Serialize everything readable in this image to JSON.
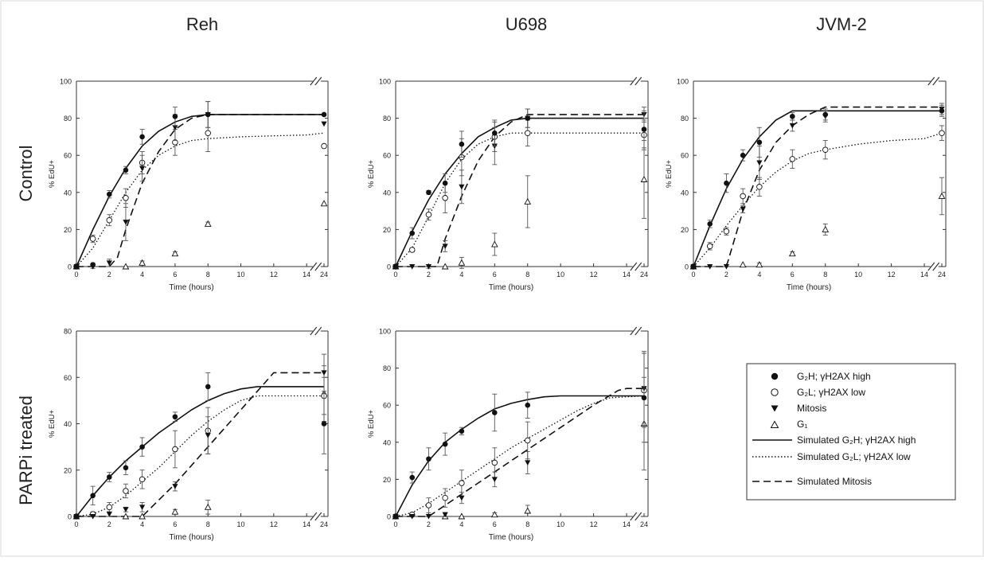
{
  "column_titles": [
    "Reh",
    "U698",
    "JVM-2"
  ],
  "row_titles": [
    "Control",
    "PARPi treated"
  ],
  "common": {
    "xlabel": "Time (hours)",
    "ylabel": "% EdU+",
    "x_ticks": [
      "0",
      "2",
      "4",
      "6",
      "8",
      "10",
      "12",
      "14",
      "24"
    ]
  },
  "legend": {
    "entries": [
      {
        "key": "g2h_points",
        "label": "G₂H; γH2AX high"
      },
      {
        "key": "g2l_points",
        "label": "G₂L; γH2AX low"
      },
      {
        "key": "mitosis_points",
        "label": "Mitosis"
      },
      {
        "key": "g1_points",
        "label": "G₁"
      },
      {
        "key": "g2h_sim",
        "label": "Simulated G₂H; γH2AX high"
      },
      {
        "key": "g2l_sim",
        "label": "Simulated G₂L; γH2AX low"
      },
      {
        "key": "mitosis_sim",
        "label": "Simulated Mitosis"
      }
    ]
  },
  "chart_data": [
    {
      "type": "scatter",
      "cell_line": "Reh",
      "condition": "Control",
      "xlabel": "Time (hours)",
      "ylabel": "% EdU+",
      "ylim": [
        0,
        100
      ],
      "y_ticks": [
        0,
        20,
        40,
        60,
        80,
        100
      ],
      "x_axis_break": [
        14,
        24
      ],
      "series": [
        {
          "name": "G₂H; γH2AX high",
          "x": [
            0,
            1,
            2,
            3,
            4,
            6,
            8,
            24
          ],
          "y": [
            0,
            1,
            39,
            52,
            70,
            81,
            82,
            82
          ],
          "err": [
            0,
            1,
            2,
            2,
            4,
            5,
            7,
            0
          ]
        },
        {
          "name": "G₂L; γH2AX low",
          "x": [
            0,
            1,
            2,
            3,
            4,
            6,
            8,
            24
          ],
          "y": [
            0,
            15,
            25,
            37,
            56,
            67,
            72,
            65
          ],
          "err": [
            0,
            2,
            3,
            5,
            6,
            7,
            10,
            0
          ]
        },
        {
          "name": "Mitosis",
          "x": [
            0,
            1,
            2,
            3,
            4,
            6,
            8,
            24
          ],
          "y": [
            0,
            0,
            2,
            24,
            53,
            75,
            82,
            77
          ],
          "err": [
            0,
            1,
            2,
            10,
            7,
            7,
            7,
            0
          ]
        },
        {
          "name": "G₁",
          "x": [
            0,
            3,
            4,
            6,
            8,
            24
          ],
          "y": [
            0,
            0,
            2,
            7,
            23,
            34
          ],
          "err": [
            0,
            0,
            1,
            1,
            1,
            0
          ]
        },
        {
          "name": "Simulated G₂H; γH2AX high",
          "x": [
            0,
            1,
            2,
            3,
            4,
            5,
            6,
            7,
            8,
            24
          ],
          "y": [
            0,
            20,
            38,
            53,
            65,
            73,
            78,
            81,
            82,
            82
          ]
        },
        {
          "name": "Simulated G₂L; γH2AX low",
          "x": [
            0,
            1,
            2,
            3,
            4,
            5,
            6,
            7,
            8,
            10,
            12,
            14,
            24
          ],
          "y": [
            0,
            10,
            25,
            40,
            52,
            60,
            65,
            68,
            69,
            70,
            70.5,
            71,
            72
          ]
        },
        {
          "name": "Simulated Mitosis",
          "x": [
            0,
            2,
            2.5,
            3,
            4,
            5,
            6,
            7,
            8,
            24
          ],
          "y": [
            0,
            0,
            5,
            20,
            45,
            62,
            74,
            80,
            82,
            82
          ]
        }
      ]
    },
    {
      "type": "scatter",
      "cell_line": "U698",
      "condition": "Control",
      "xlabel": "Time (hours)",
      "ylabel": "% EdU+",
      "ylim": [
        0,
        100
      ],
      "y_ticks": [
        0,
        20,
        40,
        60,
        80,
        100
      ],
      "x_axis_break": [
        14,
        24
      ],
      "series": [
        {
          "name": "G₂H; γH2AX high",
          "x": [
            0,
            1,
            2,
            3,
            4,
            6,
            8,
            24
          ],
          "y": [
            0,
            18,
            40,
            45,
            66,
            72,
            80,
            74
          ],
          "err": [
            0,
            3,
            1,
            5,
            7,
            7,
            5,
            10
          ]
        },
        {
          "name": "G₂L; γH2AX low",
          "x": [
            0,
            1,
            2,
            3,
            4,
            6,
            8,
            24
          ],
          "y": [
            0,
            9,
            28,
            37,
            59,
            70,
            72,
            71
          ],
          "err": [
            0,
            1,
            3,
            8,
            10,
            8,
            7,
            8
          ]
        },
        {
          "name": "Mitosis",
          "x": [
            0,
            1,
            2,
            3,
            4,
            6,
            8,
            24
          ],
          "y": [
            0,
            0,
            0,
            11,
            43,
            65,
            80,
            82
          ],
          "err": [
            0,
            0,
            1,
            3,
            9,
            10,
            5,
            4
          ]
        },
        {
          "name": "G₁",
          "x": [
            0,
            3,
            4,
            6,
            8,
            24
          ],
          "y": [
            0,
            0,
            2,
            12,
            35,
            47
          ],
          "err": [
            0,
            0,
            3,
            6,
            14,
            21
          ]
        },
        {
          "name": "Simulated G₂H; γH2AX high",
          "x": [
            0,
            1,
            2,
            3,
            4,
            5,
            6,
            7,
            8,
            24
          ],
          "y": [
            0,
            19,
            36,
            50,
            61,
            70,
            75,
            79,
            80,
            80
          ]
        },
        {
          "name": "Simulated G₂L; γH2AX low",
          "x": [
            0,
            1,
            2,
            3,
            4,
            5,
            6,
            7,
            8,
            24
          ],
          "y": [
            0,
            10,
            27,
            45,
            58,
            66,
            70,
            72,
            72,
            72
          ]
        },
        {
          "name": "Simulated Mitosis",
          "x": [
            0,
            2.5,
            3,
            4,
            5,
            6,
            7,
            8,
            24
          ],
          "y": [
            0,
            0,
            15,
            38,
            57,
            70,
            78,
            82,
            82
          ]
        }
      ]
    },
    {
      "type": "scatter",
      "cell_line": "JVM-2",
      "condition": "Control",
      "xlabel": "Time (hours)",
      "ylabel": "% EdU+",
      "ylim": [
        0,
        100
      ],
      "y_ticks": [
        0,
        20,
        40,
        60,
        80,
        100
      ],
      "x_axis_break": [
        14,
        24
      ],
      "series": [
        {
          "name": "G₂H; γH2AX high",
          "x": [
            0,
            1,
            2,
            3,
            4,
            6,
            8,
            24
          ],
          "y": [
            0,
            23,
            45,
            60,
            67,
            81,
            82,
            84
          ],
          "err": [
            0,
            2,
            5,
            3,
            8,
            2,
            3,
            3
          ]
        },
        {
          "name": "G₂L; γH2AX low",
          "x": [
            0,
            1,
            2,
            3,
            4,
            6,
            8,
            24
          ],
          "y": [
            0,
            11,
            19,
            38,
            43,
            58,
            63,
            72
          ],
          "err": [
            0,
            2,
            2,
            4,
            5,
            5,
            5,
            4
          ]
        },
        {
          "name": "Mitosis",
          "x": [
            0,
            1,
            2,
            3,
            4,
            6,
            8,
            24
          ],
          "y": [
            0,
            0,
            0,
            31,
            56,
            76,
            81,
            85
          ],
          "err": [
            0,
            0,
            0,
            2,
            9,
            3,
            3,
            3
          ]
        },
        {
          "name": "G₁",
          "x": [
            0,
            3,
            4,
            6,
            8,
            24
          ],
          "y": [
            0,
            1,
            1,
            7,
            20,
            38
          ],
          "err": [
            0,
            0,
            1,
            1,
            3,
            10
          ]
        },
        {
          "name": "Simulated G₂H; γH2AX high",
          "x": [
            0,
            1,
            2,
            3,
            4,
            5,
            6,
            24
          ],
          "y": [
            0,
            22,
            42,
            58,
            70,
            79,
            84,
            84
          ]
        },
        {
          "name": "Simulated G₂L; γH2AX low",
          "x": [
            0,
            1,
            2,
            3,
            4,
            5,
            6,
            7,
            8,
            10,
            12,
            14,
            24
          ],
          "y": [
            0,
            10,
            22,
            33,
            43,
            51,
            57,
            61,
            63,
            66,
            68,
            69,
            72
          ]
        },
        {
          "name": "Simulated Mitosis",
          "x": [
            0,
            2,
            3,
            4,
            5,
            6,
            7,
            8,
            24
          ],
          "y": [
            0,
            0,
            30,
            52,
            67,
            76,
            82,
            86,
            86
          ]
        }
      ]
    },
    {
      "type": "scatter",
      "cell_line": "Reh",
      "condition": "PARPi treated",
      "xlabel": "Time (hours)",
      "ylabel": "% EdU+",
      "ylim": [
        0,
        80
      ],
      "y_ticks": [
        0,
        20,
        40,
        60,
        80
      ],
      "x_axis_break": [
        14,
        24
      ],
      "series": [
        {
          "name": "G₂H; γH2AX high",
          "x": [
            0,
            1,
            2,
            3,
            4,
            6,
            8,
            24
          ],
          "y": [
            0,
            9,
            17,
            21,
            30,
            43,
            56,
            40
          ],
          "err": [
            0,
            4,
            2,
            3,
            4,
            2,
            6,
            13
          ]
        },
        {
          "name": "G₂L; γH2AX low",
          "x": [
            0,
            1,
            2,
            3,
            4,
            6,
            8,
            24
          ],
          "y": [
            0,
            1,
            4,
            11,
            16,
            29,
            37,
            52
          ],
          "err": [
            0,
            1,
            2,
            3,
            4,
            8,
            10,
            8
          ]
        },
        {
          "name": "Mitosis",
          "x": [
            0,
            1,
            2,
            3,
            4,
            6,
            8,
            24
          ],
          "y": [
            0,
            0,
            1,
            3,
            4,
            13,
            35,
            62
          ],
          "err": [
            0,
            0,
            1,
            1,
            2,
            2,
            8,
            8
          ]
        },
        {
          "name": "G₁",
          "x": [
            0,
            3,
            4,
            6,
            8,
            24
          ],
          "y": [
            0,
            0,
            0,
            2,
            4,
            53
          ],
          "err": [
            0,
            0,
            0,
            1,
            3,
            12
          ]
        },
        {
          "name": "Simulated G₂H; γH2AX high",
          "x": [
            0,
            1,
            2,
            3,
            4,
            5,
            6,
            7,
            8,
            9,
            10,
            11,
            12,
            24
          ],
          "y": [
            0,
            9,
            17,
            24,
            30,
            36,
            41,
            46,
            50,
            53,
            55,
            56,
            56,
            56
          ]
        },
        {
          "name": "Simulated G₂L; γH2AX low",
          "x": [
            0,
            1,
            2,
            3,
            4,
            5,
            6,
            7,
            8,
            9,
            10,
            11,
            24
          ],
          "y": [
            0,
            1,
            4,
            9,
            15,
            21,
            28,
            35,
            41,
            46,
            50,
            52,
            52
          ]
        },
        {
          "name": "Simulated Mitosis",
          "x": [
            0,
            4,
            6,
            8,
            10,
            11.5,
            12,
            24
          ],
          "y": [
            0,
            0,
            14,
            30,
            46,
            58,
            62,
            62
          ]
        }
      ]
    },
    {
      "type": "scatter",
      "cell_line": "U698",
      "condition": "PARPi treated",
      "xlabel": "Time (hours)",
      "ylabel": "% EdU+",
      "ylim": [
        0,
        100
      ],
      "y_ticks": [
        0,
        20,
        40,
        60,
        80,
        100
      ],
      "x_axis_break": [
        14,
        24
      ],
      "series": [
        {
          "name": "G₂H; γH2AX high",
          "x": [
            0,
            1,
            2,
            3,
            4,
            6,
            8,
            24
          ],
          "y": [
            0,
            21,
            31,
            39,
            46,
            56,
            60,
            64
          ],
          "err": [
            0,
            3,
            6,
            6,
            2,
            10,
            7,
            24
          ]
        },
        {
          "name": "G₂L; γH2AX low",
          "x": [
            0,
            1,
            2,
            3,
            4,
            6,
            8,
            24
          ],
          "y": [
            0,
            1,
            6,
            10,
            18,
            29,
            41,
            68
          ],
          "err": [
            0,
            1,
            4,
            5,
            7,
            8,
            10,
            20
          ]
        },
        {
          "name": "Mitosis",
          "x": [
            0,
            1,
            2,
            3,
            4,
            6,
            8,
            24
          ],
          "y": [
            0,
            0,
            0,
            1,
            10,
            20,
            29,
            69
          ],
          "err": [
            0,
            0,
            0,
            1,
            3,
            4,
            6,
            20
          ]
        },
        {
          "name": "G₁",
          "x": [
            0,
            3,
            4,
            6,
            8,
            24
          ],
          "y": [
            0,
            0,
            0,
            1,
            3,
            50
          ],
          "err": [
            0,
            0,
            0,
            1,
            3,
            25
          ]
        },
        {
          "name": "Simulated G₂H; γH2AX high",
          "x": [
            0,
            1,
            2,
            3,
            4,
            5,
            6,
            7,
            8,
            9,
            10,
            24
          ],
          "y": [
            0,
            17,
            30,
            40,
            47,
            53,
            58,
            61,
            63,
            64.5,
            65,
            65
          ]
        },
        {
          "name": "Simulated G₂L; γH2AX low",
          "x": [
            0,
            1,
            2,
            3,
            4,
            5,
            6,
            7,
            8,
            9,
            10,
            11,
            12,
            13,
            24
          ],
          "y": [
            0,
            2,
            7,
            13,
            19,
            25,
            31,
            37,
            42,
            47,
            52,
            57,
            61,
            64,
            65
          ]
        },
        {
          "name": "Simulated Mitosis",
          "x": [
            0,
            2,
            4,
            6,
            8,
            10,
            12,
            13.5,
            14,
            24
          ],
          "y": [
            0,
            0,
            12,
            24,
            36,
            48,
            60,
            68,
            69,
            69
          ]
        }
      ]
    }
  ]
}
